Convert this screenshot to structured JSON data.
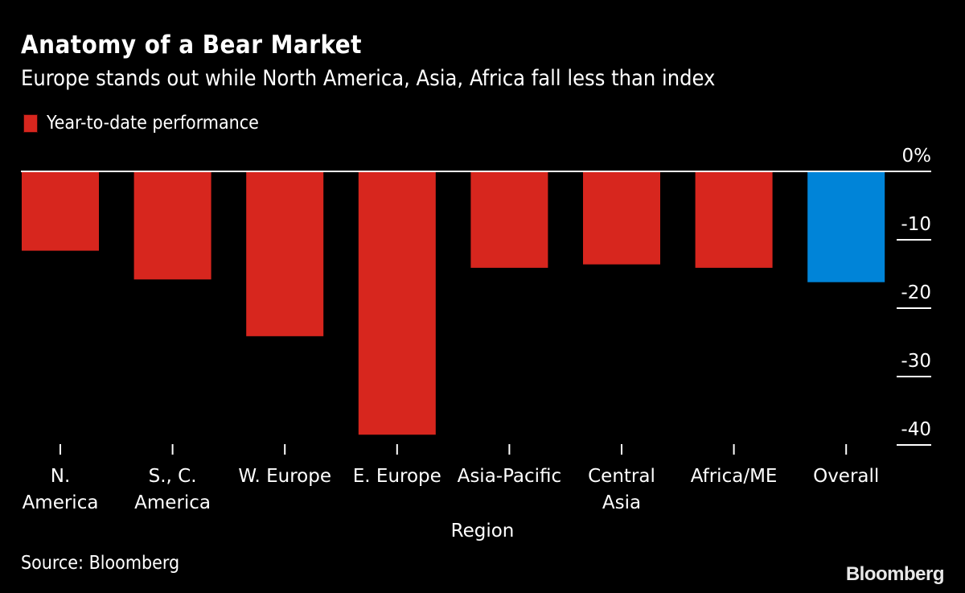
{
  "chart_data": {
    "type": "bar",
    "title": "Anatomy of a Bear Market",
    "subtitle": "Europe stands out while North America, Asia, Africa fall less than index",
    "legend": [
      {
        "name": "Year-to-date performance",
        "color": "#d7261e"
      }
    ],
    "legend_position": "top-left",
    "categories": [
      "N.\nAmerica",
      "S., C.\nAmerica",
      "W. Europe",
      "E. Europe",
      "Asia-Pacific",
      "Central\nAsia",
      "Africa/ME",
      "Overall"
    ],
    "values": [
      -11.6,
      -15.8,
      -24.1,
      -38.5,
      -14.1,
      -13.6,
      -14.1,
      -16.2
    ],
    "colors": [
      "#d7261e",
      "#d7261e",
      "#d7261e",
      "#d7261e",
      "#d7261e",
      "#d7261e",
      "#d7261e",
      "#0084d8"
    ],
    "xlabel": "Region",
    "ylabel": "",
    "ylim": [
      -40,
      0
    ],
    "yticks": [
      0,
      -10,
      -20,
      -30,
      -40
    ],
    "ytick_labels": [
      "0%",
      "-10",
      "-20",
      "-30",
      "-40"
    ],
    "y_axis_side": "right",
    "grid": false
  },
  "footer": {
    "source": "Source: Bloomberg",
    "brand": "Bloomberg"
  }
}
